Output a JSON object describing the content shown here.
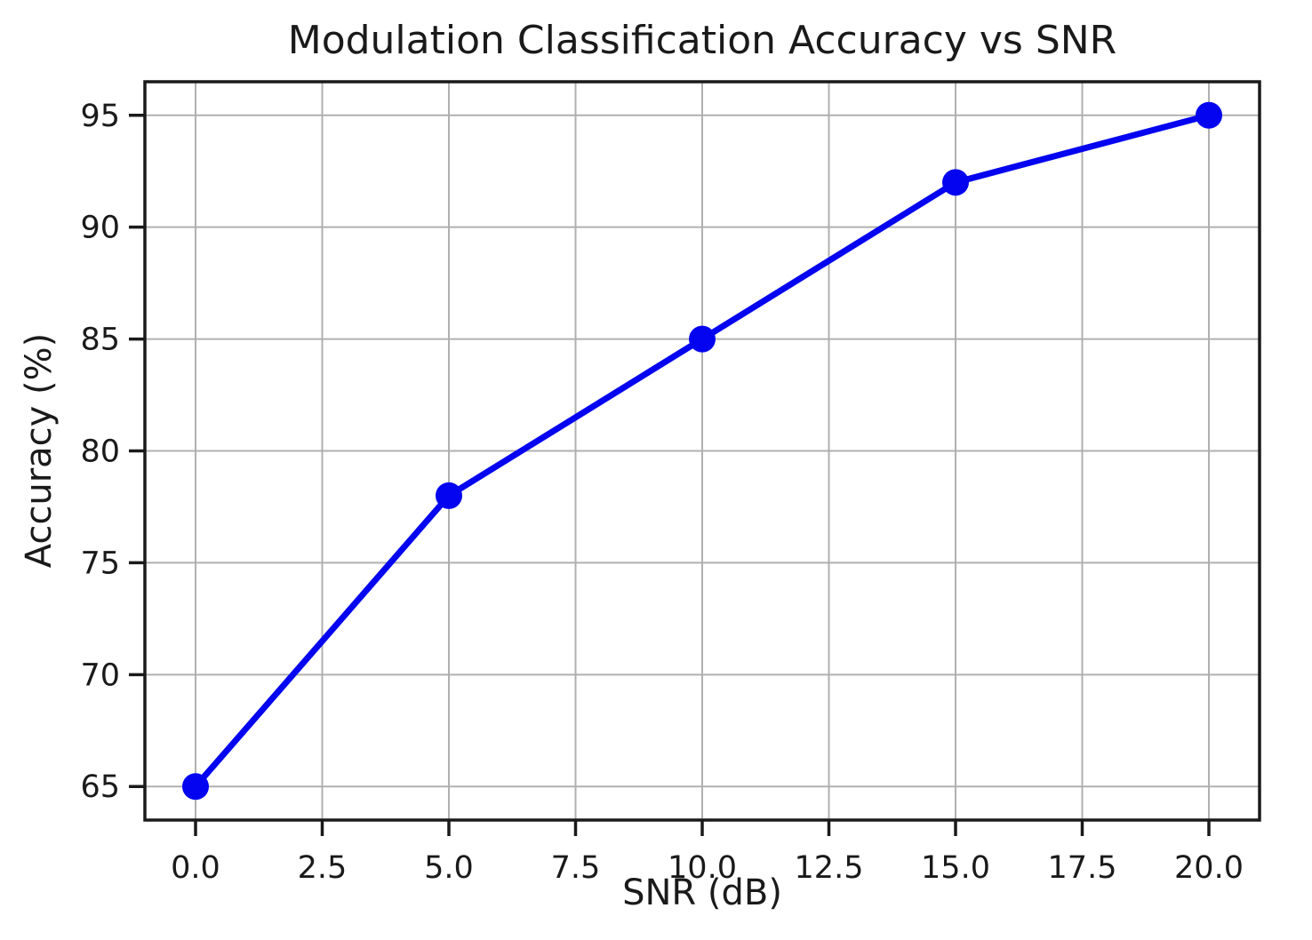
{
  "chart_data": {
    "type": "line",
    "title": "Modulation Classification Accuracy vs SNR",
    "xlabel": "SNR (dB)",
    "ylabel": "Accuracy (%)",
    "x": [
      0,
      5,
      10,
      15,
      20
    ],
    "series": [
      {
        "name": "accuracy",
        "values": [
          65,
          78,
          85,
          92,
          95
        ],
        "color": "#0404f0",
        "marker": "circle"
      }
    ],
    "xlim": [
      -1,
      21
    ],
    "ylim": [
      63.5,
      96.5
    ],
    "xticks": {
      "values": [
        0,
        2.5,
        5,
        7.5,
        10,
        12.5,
        15,
        17.5,
        20
      ],
      "labels": [
        "0.0",
        "2.5",
        "5.0",
        "7.5",
        "10.0",
        "12.5",
        "15.0",
        "17.5",
        "20.0"
      ]
    },
    "yticks": {
      "values": [
        65,
        70,
        75,
        80,
        85,
        90,
        95
      ],
      "labels": [
        "65",
        "70",
        "75",
        "80",
        "85",
        "90",
        "95"
      ]
    },
    "grid": true,
    "legend": "none",
    "colors": {
      "grid": "#b0b0b0",
      "spine": "#1a1a1a",
      "text": "#1a1a1a",
      "background": "#ffffff"
    }
  }
}
